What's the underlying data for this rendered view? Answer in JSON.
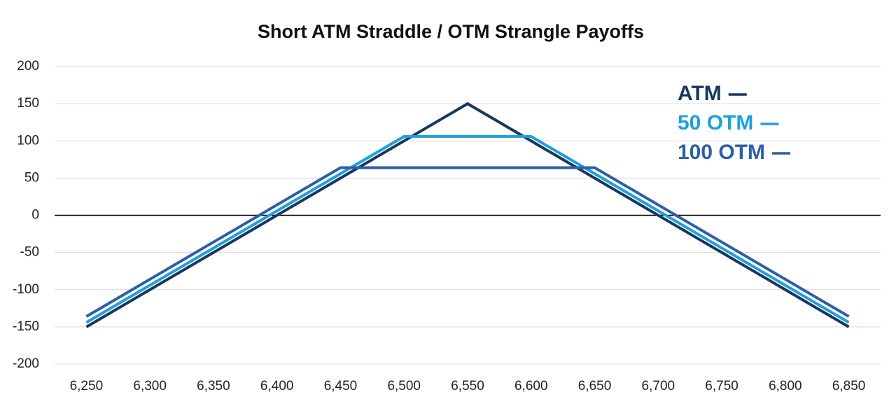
{
  "chart_data": {
    "type": "line",
    "title": "Short ATM Straddle / OTM Strangle Payoffs",
    "series": [
      {
        "name": "ATM",
        "color": "#17375e",
        "x": [
          6250,
          6550,
          6850
        ],
        "values": [
          -150,
          150,
          -150
        ]
      },
      {
        "name": "50 OTM",
        "color": "#1ea0dc",
        "x": [
          6250,
          6500,
          6600,
          6850
        ],
        "values": [
          -144,
          106,
          106,
          -144
        ]
      },
      {
        "name": "100 OTM",
        "color": "#2e5fa3",
        "x": [
          6250,
          6450,
          6650,
          6850
        ],
        "values": [
          -136,
          64,
          64,
          -136
        ]
      }
    ],
    "xlim": [
      6225,
      6875
    ],
    "xticks": [
      {
        "value": 6250,
        "label": "6,250"
      },
      {
        "value": 6300,
        "label": "6,300"
      },
      {
        "value": 6350,
        "label": "6,350"
      },
      {
        "value": 6400,
        "label": "6,400"
      },
      {
        "value": 6450,
        "label": "6,450"
      },
      {
        "value": 6500,
        "label": "6,500"
      },
      {
        "value": 6550,
        "label": "6,550"
      },
      {
        "value": 6600,
        "label": "6,600"
      },
      {
        "value": 6650,
        "label": "6,650"
      },
      {
        "value": 6700,
        "label": "6,700"
      },
      {
        "value": 6750,
        "label": "6,750"
      },
      {
        "value": 6800,
        "label": "6,800"
      },
      {
        "value": 6850,
        "label": "6,850"
      }
    ],
    "ylim": [
      -200,
      200
    ],
    "yticks": [
      -200,
      -150,
      -100,
      -50,
      0,
      50,
      100,
      150,
      200
    ],
    "grid": true,
    "legend": "top-right"
  }
}
